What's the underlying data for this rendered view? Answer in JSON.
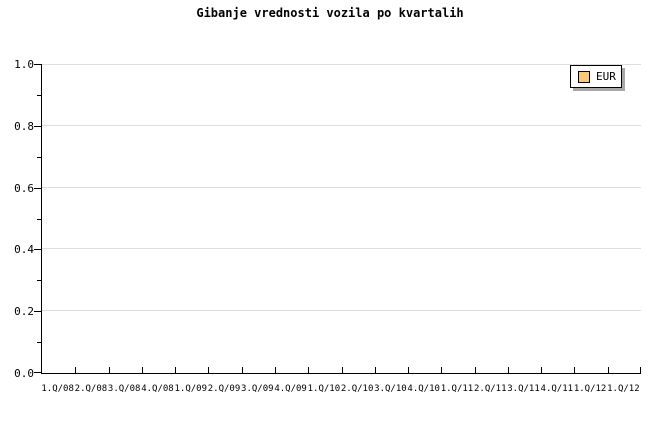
{
  "page": {
    "background_color": "#ffffff",
    "axis_color": "#000000",
    "grid_color": "#dedede",
    "legend_shadow_color": "#a8a8a8"
  },
  "legend": {
    "label": "EUR",
    "swatch_color": "#fac878",
    "swatch_name": "eur-series-swatch"
  },
  "chart_data": {
    "type": "line",
    "title": "Gibanje vrednosti vozila po kvartalih",
    "xlabel": "",
    "ylabel": "",
    "x_tick_labels": [
      "1.Q/08",
      "2.Q/08",
      "3.Q/08",
      "4.Q/08",
      "1.Q/09",
      "2.Q/09",
      "3.Q/09",
      "4.Q/09",
      "1.Q/10",
      "2.Q/10",
      "3.Q/10",
      "4.Q/10",
      "1.Q/11",
      "2.Q/11",
      "3.Q/11",
      "4.Q/11",
      "1.Q/12",
      "1.Q/12"
    ],
    "y_major_ticks": [
      0.0,
      0.2,
      0.4,
      0.6,
      0.8,
      1.0
    ],
    "y_tick_labels": [
      "0.0",
      "0.2",
      "0.4",
      "0.6",
      "0.8",
      "1.0"
    ],
    "y_minor_step": 0.1,
    "ylim": [
      0.0,
      1.0
    ],
    "grid": "horizontal-major-only",
    "legend_position": "top-right",
    "series": [
      {
        "name": "EUR",
        "color": "#fac878",
        "values": []
      }
    ]
  }
}
